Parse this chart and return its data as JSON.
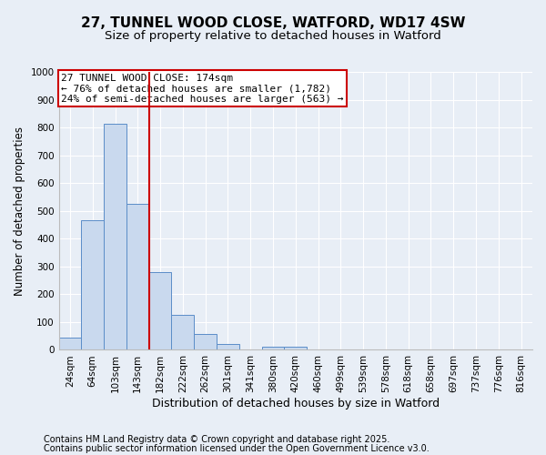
{
  "title": "27, TUNNEL WOOD CLOSE, WATFORD, WD17 4SW",
  "subtitle": "Size of property relative to detached houses in Watford",
  "xlabel": "Distribution of detached houses by size in Watford",
  "ylabel": "Number of detached properties",
  "categories": [
    "24sqm",
    "64sqm",
    "103sqm",
    "143sqm",
    "182sqm",
    "222sqm",
    "262sqm",
    "301sqm",
    "341sqm",
    "380sqm",
    "420sqm",
    "460sqm",
    "499sqm",
    "539sqm",
    "578sqm",
    "618sqm",
    "658sqm",
    "697sqm",
    "737sqm",
    "776sqm",
    "816sqm"
  ],
  "values": [
    45,
    465,
    815,
    525,
    280,
    127,
    57,
    22,
    3,
    11,
    11,
    0,
    3,
    0,
    0,
    0,
    0,
    0,
    0,
    0,
    0
  ],
  "bar_color": "#c9d9ee",
  "bar_edge_color": "#5b8dc8",
  "red_line_index": 4,
  "annotation_title": "27 TUNNEL WOOD CLOSE: 174sqm",
  "annotation_line1": "← 76% of detached houses are smaller (1,782)",
  "annotation_line2": "24% of semi-detached houses are larger (563) →",
  "annotation_box_color": "#ffffff",
  "annotation_box_edge": "#cc0000",
  "footer1": "Contains HM Land Registry data © Crown copyright and database right 2025.",
  "footer2": "Contains public sector information licensed under the Open Government Licence v3.0.",
  "ylim": [
    0,
    1000
  ],
  "yticks": [
    0,
    100,
    200,
    300,
    400,
    500,
    600,
    700,
    800,
    900,
    1000
  ],
  "background_color": "#e8eef6",
  "plot_background": "#e8eef6",
  "grid_color": "#ffffff",
  "title_fontsize": 11,
  "subtitle_fontsize": 9.5,
  "annotation_fontsize": 8,
  "xlabel_fontsize": 9,
  "ylabel_fontsize": 8.5,
  "tick_fontsize": 7.5,
  "footer_fontsize": 7
}
